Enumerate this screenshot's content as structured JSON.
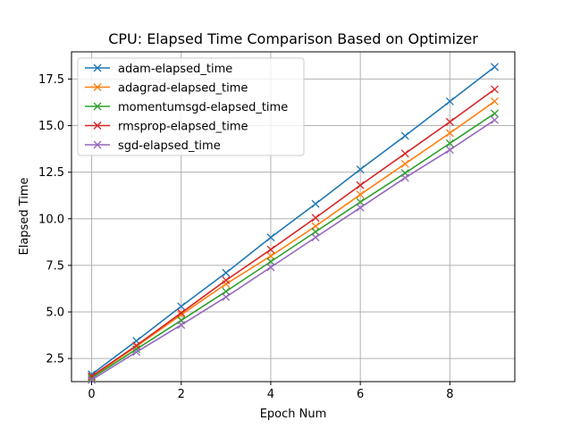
{
  "chart_data": {
    "type": "line",
    "title": "CPU: Elapsed Time Comparison Based on Optimizer",
    "xlabel": "Epoch Num",
    "ylabel": "Elapsed Time",
    "xlim": [
      -0.45,
      9.45
    ],
    "ylim": [
      1.26,
      18.96
    ],
    "xticks": [
      0,
      2,
      4,
      6,
      8
    ],
    "xtick_labels": [
      "0",
      "2",
      "4",
      "6",
      "8"
    ],
    "yticks": [
      2.5,
      5.0,
      7.5,
      10.0,
      12.5,
      15.0,
      17.5
    ],
    "ytick_labels": [
      "2.5",
      "5.0",
      "7.5",
      "10.0",
      "12.5",
      "15.0",
      "17.5"
    ],
    "grid": true,
    "legend_position": "upper-left",
    "marker": "x",
    "x": [
      0,
      1,
      2,
      3,
      4,
      5,
      6,
      7,
      8,
      9
    ],
    "series": [
      {
        "name": "adam-elapsed_time",
        "color": "#1f77b4",
        "values": [
          1.65,
          3.45,
          5.3,
          7.1,
          9.0,
          10.8,
          12.65,
          14.45,
          16.3,
          18.15
        ]
      },
      {
        "name": "adagrad-elapsed_time",
        "color": "#ff7f0e",
        "values": [
          1.5,
          3.15,
          4.85,
          6.5,
          8.0,
          9.6,
          11.3,
          12.95,
          14.6,
          16.3
        ]
      },
      {
        "name": "momentumsgd-elapsed_time",
        "color": "#2ca02c",
        "values": [
          1.45,
          3.0,
          4.55,
          6.1,
          7.7,
          9.3,
          10.9,
          12.45,
          14.05,
          15.65
        ]
      },
      {
        "name": "rmsprop-elapsed_time",
        "color": "#d62728",
        "values": [
          1.55,
          3.2,
          4.95,
          6.7,
          8.35,
          10.05,
          11.8,
          13.5,
          15.2,
          16.95
        ]
      },
      {
        "name": "sgd-elapsed_time",
        "color": "#9467bd",
        "values": [
          1.35,
          2.85,
          4.3,
          5.8,
          7.4,
          9.0,
          10.6,
          12.2,
          13.7,
          15.3
        ]
      }
    ]
  }
}
